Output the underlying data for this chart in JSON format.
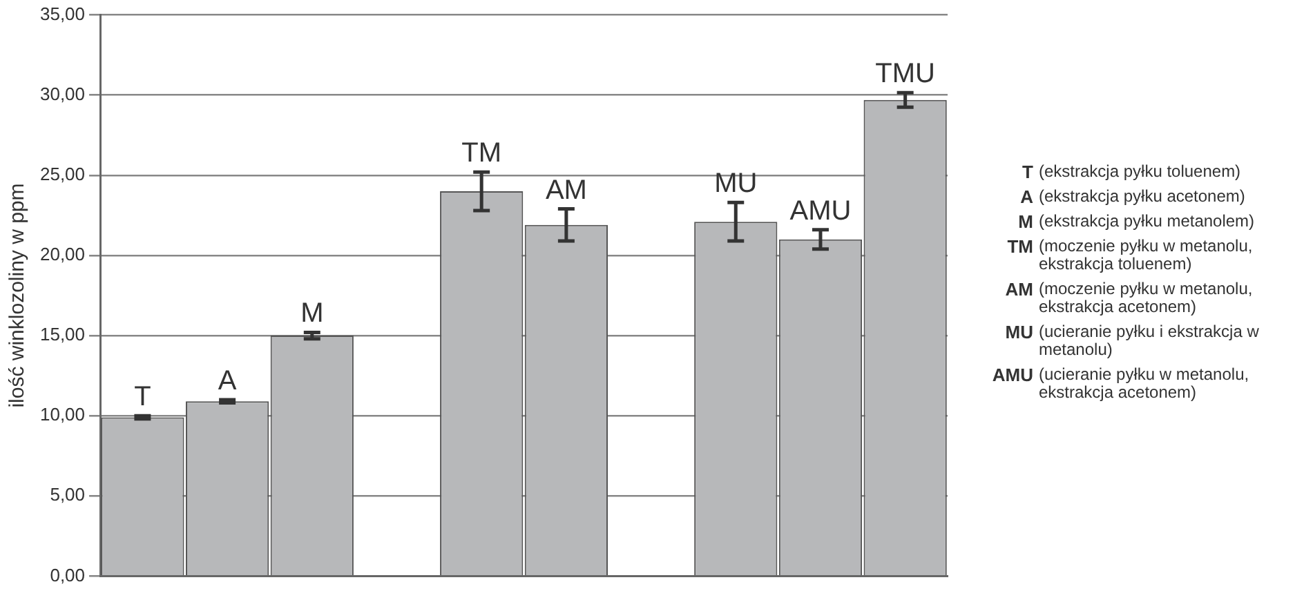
{
  "chart_data": {
    "type": "bar",
    "ylabel": "ilość winklozoliny w ppm",
    "categories": [
      "T",
      "A",
      "M",
      null,
      "TM",
      "AM",
      null,
      "MU",
      "AMU",
      "TMU"
    ],
    "values": [
      9.9,
      10.9,
      15.0,
      null,
      24.0,
      21.9,
      null,
      22.1,
      21.0,
      29.7
    ],
    "errors": [
      0.1,
      0.1,
      0.2,
      null,
      1.2,
      1.0,
      null,
      1.2,
      0.6,
      0.45
    ],
    "color": "#b7b8ba",
    "ylim": [
      0,
      35
    ],
    "yticks": [
      {
        "value": 0,
        "label": "0,00"
      },
      {
        "value": 5,
        "label": "5,00"
      },
      {
        "value": 10,
        "label": "10,00"
      },
      {
        "value": 15,
        "label": "15,00"
      },
      {
        "value": 20,
        "label": "20,00"
      },
      {
        "value": 25,
        "label": "25,00"
      },
      {
        "value": 30,
        "label": "30,00"
      },
      {
        "value": 35,
        "label": "35,00"
      }
    ],
    "grid": "y",
    "tick_labels": "y",
    "legend": false,
    "annotations": [
      "T (ekstrakcja pyłku toluenem)",
      "A (ekstrakcja pyłku acetonem)",
      "M (ekstrakcja pyłku metanolem)",
      "TM (moczenie pyłku w metanolu, ekstrakcja toluenem)",
      "AM (moczenie pyłku w metanolu, ekstrakcja acetonem)",
      "MU (ucieranie pyłku i ekstrakcja w metanolu)",
      "AMU (ucieranie pyłku w metanolu, ekstrakcja acetonem)"
    ]
  }
}
